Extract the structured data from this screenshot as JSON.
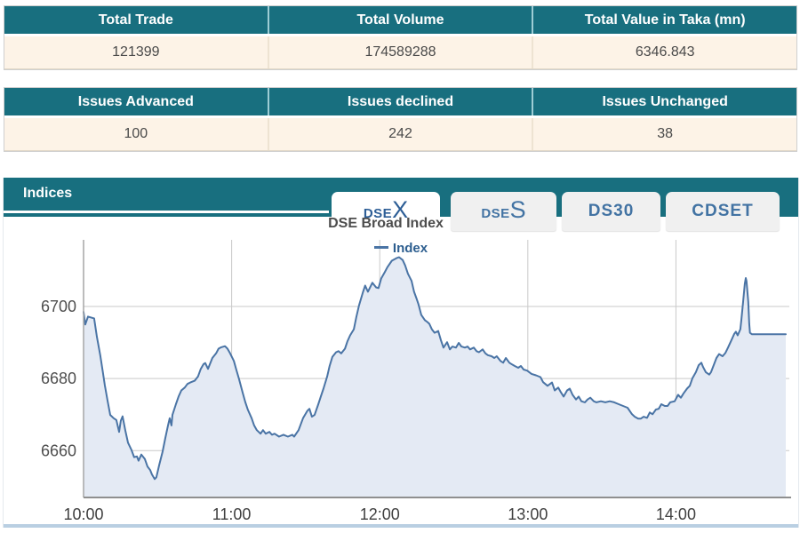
{
  "summary_tables": [
    {
      "headers": [
        "Total Trade",
        "Total Volume",
        "Total Value in Taka (mn)"
      ],
      "values": [
        "121399",
        "174589288",
        "6346.843"
      ]
    },
    {
      "headers": [
        "Issues Advanced",
        "Issues declined",
        "Issues Unchanged"
      ],
      "values": [
        "100",
        "242",
        "38"
      ]
    }
  ],
  "indices_panel": {
    "title": "Indices",
    "tabs": [
      {
        "prefix": "DSE",
        "suffix": "X",
        "active": true
      },
      {
        "prefix": "DSE",
        "suffix": "S",
        "active": false
      },
      {
        "label": "DS30",
        "active": false
      },
      {
        "label": "CDSET",
        "active": false
      }
    ]
  },
  "colors": {
    "teal_header": "#186f7f",
    "cream_row": "#fdf3e7",
    "tab_text": "#4273a3",
    "active_tab_text": "#2d5e96",
    "line": "#4a74a5",
    "area_fill": "#e4eaf4",
    "gridline": "#c9c9c9",
    "axis_line": "#8f8f8f",
    "axis_label": "#4f4f4f",
    "title_text": "#4d4d4d",
    "legend_text": "#2d5e8f",
    "panel_bottom_border": "#b9cfe2"
  },
  "chart_data": {
    "type": "area",
    "title": "DSE Broad Index",
    "series_name": "Index",
    "x_unit": "minutes after 10:00",
    "xlim": [
      0,
      284.5
    ],
    "ylim": [
      6647,
      6718.5
    ],
    "grid": true,
    "legend_position": "top-center",
    "x_ticks": [
      {
        "t": 0,
        "label": "10:00"
      },
      {
        "t": 60,
        "label": "11:00"
      },
      {
        "t": 120,
        "label": "12:00"
      },
      {
        "t": 180,
        "label": "13:00"
      },
      {
        "t": 240,
        "label": "14:00"
      }
    ],
    "y_ticks": [
      6660,
      6680,
      6700
    ],
    "points": [
      [
        0,
        6698.5
      ],
      [
        0.7,
        6695
      ],
      [
        1.8,
        6697.2
      ],
      [
        4.3,
        6696.7
      ],
      [
        5.4,
        6691.6
      ],
      [
        6.8,
        6686.3
      ],
      [
        7.9,
        6681.5
      ],
      [
        8.6,
        6678.2
      ],
      [
        9.7,
        6674
      ],
      [
        10.8,
        6669.9
      ],
      [
        12.2,
        6669
      ],
      [
        13.3,
        6668.5
      ],
      [
        14.4,
        6665.2
      ],
      [
        15.1,
        6668.3
      ],
      [
        15.8,
        6669.5
      ],
      [
        16.9,
        6665.7
      ],
      [
        18,
        6662.2
      ],
      [
        19.4,
        6660.2
      ],
      [
        20.5,
        6658.2
      ],
      [
        21.6,
        6658.4
      ],
      [
        22.3,
        6657.2
      ],
      [
        23.4,
        6658.9
      ],
      [
        24.8,
        6657.7
      ],
      [
        25.9,
        6655.6
      ],
      [
        27,
        6654.6
      ],
      [
        27.7,
        6653.4
      ],
      [
        28.8,
        6652.1
      ],
      [
        29.5,
        6652.6
      ],
      [
        30.6,
        6655.9
      ],
      [
        32,
        6659.7
      ],
      [
        33.1,
        6663.4
      ],
      [
        34.2,
        6667
      ],
      [
        34.9,
        6669
      ],
      [
        35.6,
        6667
      ],
      [
        36,
        6669.9
      ],
      [
        37.4,
        6672.9
      ],
      [
        38.5,
        6675
      ],
      [
        39.6,
        6676.7
      ],
      [
        41,
        6677.5
      ],
      [
        42.1,
        6678.5
      ],
      [
        43.2,
        6678.9
      ],
      [
        45,
        6679.4
      ],
      [
        46.4,
        6680.6
      ],
      [
        47.5,
        6682.7
      ],
      [
        48.6,
        6684
      ],
      [
        49.3,
        6684.3
      ],
      [
        50.4,
        6682.7
      ],
      [
        52.2,
        6685.7
      ],
      [
        53.7,
        6687
      ],
      [
        54.7,
        6688.3
      ],
      [
        55.8,
        6688.7
      ],
      [
        57.3,
        6689
      ],
      [
        58.3,
        6688.3
      ],
      [
        59.4,
        6687
      ],
      [
        60.9,
        6684.9
      ],
      [
        61.9,
        6682.4
      ],
      [
        63,
        6679.9
      ],
      [
        64.5,
        6676
      ],
      [
        65.5,
        6673.5
      ],
      [
        66.6,
        6671.3
      ],
      [
        68.1,
        6669
      ],
      [
        69.1,
        6667
      ],
      [
        70.2,
        6665.7
      ],
      [
        71.7,
        6664.7
      ],
      [
        72.7,
        6665.7
      ],
      [
        73.8,
        6664.7
      ],
      [
        75.3,
        6665.2
      ],
      [
        76.3,
        6664.4
      ],
      [
        77.4,
        6664.7
      ],
      [
        79.2,
        6663.9
      ],
      [
        81,
        6664.4
      ],
      [
        82.8,
        6663.9
      ],
      [
        84.6,
        6664.4
      ],
      [
        85.3,
        6663.9
      ],
      [
        87.1,
        6665.7
      ],
      [
        88.9,
        6669
      ],
      [
        90.7,
        6671.1
      ],
      [
        91.5,
        6671.6
      ],
      [
        92.5,
        6669.4
      ],
      [
        93.6,
        6669.9
      ],
      [
        95.1,
        6672.9
      ],
      [
        96.1,
        6675
      ],
      [
        97.2,
        6677.2
      ],
      [
        98.7,
        6680.6
      ],
      [
        99.7,
        6683.5
      ],
      [
        100.8,
        6686
      ],
      [
        102.3,
        6687.3
      ],
      [
        103.3,
        6687.6
      ],
      [
        104.4,
        6687
      ],
      [
        105.9,
        6688.3
      ],
      [
        106.9,
        6690.3
      ],
      [
        108,
        6692
      ],
      [
        109.5,
        6693.7
      ],
      [
        110.5,
        6697
      ],
      [
        111.6,
        6700.3
      ],
      [
        113.1,
        6703.8
      ],
      [
        114.1,
        6705.8
      ],
      [
        115.2,
        6704.1
      ],
      [
        117,
        6706.6
      ],
      [
        118.5,
        6705.3
      ],
      [
        119.5,
        6705.1
      ],
      [
        120.6,
        6707.8
      ],
      [
        122.1,
        6709.6
      ],
      [
        123.1,
        6710.9
      ],
      [
        124.9,
        6712.7
      ],
      [
        126.7,
        6713.4
      ],
      [
        127.8,
        6713.7
      ],
      [
        129.3,
        6712.9
      ],
      [
        130.3,
        6711.4
      ],
      [
        131.4,
        6709.1
      ],
      [
        132.9,
        6707.1
      ],
      [
        133.9,
        6704.1
      ],
      [
        135,
        6702
      ],
      [
        135.7,
        6700.6
      ],
      [
        136.8,
        6697.7
      ],
      [
        138.3,
        6696.2
      ],
      [
        139.3,
        6695.7
      ],
      [
        140.1,
        6695.2
      ],
      [
        141.1,
        6693.7
      ],
      [
        142.2,
        6692.7
      ],
      [
        143.7,
        6693.2
      ],
      [
        144.8,
        6690.6
      ],
      [
        145.8,
        6688.6
      ],
      [
        147.3,
        6690.1
      ],
      [
        148.4,
        6688.1
      ],
      [
        149.4,
        6688.9
      ],
      [
        150.9,
        6688.6
      ],
      [
        152,
        6689.9
      ],
      [
        153.1,
        6688.9
      ],
      [
        154.5,
        6688.6
      ],
      [
        155.6,
        6688.9
      ],
      [
        156.6,
        6688.1
      ],
      [
        158.1,
        6688.6
      ],
      [
        159.2,
        6687.6
      ],
      [
        160.2,
        6687.3
      ],
      [
        161.7,
        6688.1
      ],
      [
        162.8,
        6687
      ],
      [
        163.8,
        6686.5
      ],
      [
        165.3,
        6686.2
      ],
      [
        166.4,
        6685.7
      ],
      [
        167.4,
        6686.2
      ],
      [
        168.9,
        6684.9
      ],
      [
        170,
        6684.4
      ],
      [
        171.1,
        6685.7
      ],
      [
        172.5,
        6684.4
      ],
      [
        173.6,
        6683.9
      ],
      [
        174.7,
        6683.5
      ],
      [
        176.1,
        6683
      ],
      [
        177.2,
        6683.5
      ],
      [
        178.3,
        6682.5
      ],
      [
        179.7,
        6682.2
      ],
      [
        181.5,
        6681.3
      ],
      [
        183.3,
        6680.9
      ],
      [
        185.1,
        6680.4
      ],
      [
        186.2,
        6679
      ],
      [
        188,
        6678
      ],
      [
        189.8,
        6678.9
      ],
      [
        190.9,
        6676.7
      ],
      [
        192.3,
        6677.5
      ],
      [
        193.4,
        6676.2
      ],
      [
        194.5,
        6675
      ],
      [
        195.9,
        6676.7
      ],
      [
        197,
        6677.2
      ],
      [
        198.1,
        6675.5
      ],
      [
        199.5,
        6674.2
      ],
      [
        200.6,
        6675
      ],
      [
        201.7,
        6673.7
      ],
      [
        203.1,
        6673.4
      ],
      [
        204.2,
        6674.2
      ],
      [
        205.3,
        6674.7
      ],
      [
        206.7,
        6673.7
      ],
      [
        207.8,
        6673.4
      ],
      [
        209.6,
        6673.7
      ],
      [
        211.4,
        6673.4
      ],
      [
        213.2,
        6673.7
      ],
      [
        215,
        6673.4
      ],
      [
        216.8,
        6672.9
      ],
      [
        218.6,
        6672.4
      ],
      [
        220.4,
        6671.9
      ],
      [
        222.2,
        6670.1
      ],
      [
        223.3,
        6669.4
      ],
      [
        224.7,
        6668.9
      ],
      [
        225.8,
        6668.9
      ],
      [
        226.9,
        6669.4
      ],
      [
        228.3,
        6669.1
      ],
      [
        229.4,
        6670.6
      ],
      [
        230.5,
        6670.1
      ],
      [
        231.9,
        6671.4
      ],
      [
        233,
        6671.6
      ],
      [
        234.1,
        6672.9
      ],
      [
        235.5,
        6672.4
      ],
      [
        236.6,
        6672.4
      ],
      [
        237.7,
        6673.4
      ],
      [
        239.5,
        6673.7
      ],
      [
        240.9,
        6675.5
      ],
      [
        242,
        6674.7
      ],
      [
        243.1,
        6675.9
      ],
      [
        244.5,
        6677.2
      ],
      [
        245.6,
        6678
      ],
      [
        246.7,
        6680.1
      ],
      [
        248.1,
        6681.8
      ],
      [
        249.2,
        6683.7
      ],
      [
        250.3,
        6684.4
      ],
      [
        251,
        6683.2
      ],
      [
        252.1,
        6681.8
      ],
      [
        253.5,
        6681.1
      ],
      [
        254.2,
        6681.8
      ],
      [
        255.3,
        6683.7
      ],
      [
        256.4,
        6685.7
      ],
      [
        257.5,
        6686.8
      ],
      [
        258.9,
        6686.2
      ],
      [
        260,
        6687.1
      ],
      [
        261.1,
        6688.6
      ],
      [
        262.5,
        6690.7
      ],
      [
        263.6,
        6692.4
      ],
      [
        264.3,
        6693
      ],
      [
        265,
        6692
      ],
      [
        266.1,
        6693.7
      ],
      [
        266.5,
        6696.2
      ],
      [
        267.2,
        6701.3
      ],
      [
        267.9,
        6706.3
      ],
      [
        268.3,
        6707.9
      ],
      [
        268.6,
        6707.1
      ],
      [
        269.3,
        6701.3
      ],
      [
        269.7,
        6695.2
      ],
      [
        270,
        6692.7
      ],
      [
        270.8,
        6692.3
      ],
      [
        284.5,
        6692.3
      ]
    ]
  }
}
